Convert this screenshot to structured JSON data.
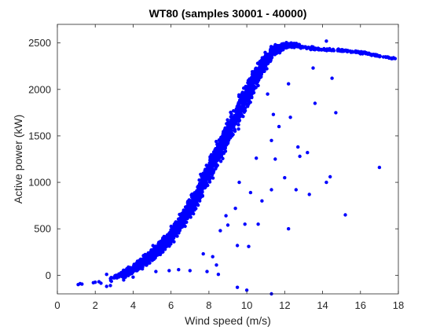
{
  "chart_data": {
    "type": "scatter",
    "title": "WT80 (samples 30001 - 40000)",
    "xlabel": "Wind speed (m/s)",
    "ylabel": "Active power (kW)",
    "xlim": [
      0,
      18
    ],
    "ylim": [
      -200,
      2700
    ],
    "xticks": [
      0,
      2,
      4,
      6,
      8,
      10,
      12,
      14,
      16,
      18
    ],
    "yticks": [
      0,
      500,
      1000,
      1500,
      2000,
      2500
    ],
    "grid": false,
    "box": true,
    "series": [
      {
        "color": "#0000ff",
        "marker": "dot",
        "trend_band": [
          {
            "x": 2.7,
            "y": -40,
            "spread": 40
          },
          {
            "x": 3.2,
            "y": -10,
            "spread": 40
          },
          {
            "x": 4.0,
            "y": 60,
            "spread": 60
          },
          {
            "x": 5.0,
            "y": 220,
            "spread": 80
          },
          {
            "x": 6.0,
            "y": 420,
            "spread": 100
          },
          {
            "x": 7.0,
            "y": 720,
            "spread": 130
          },
          {
            "x": 7.5,
            "y": 900,
            "spread": 140
          },
          {
            "x": 8.0,
            "y": 1130,
            "spread": 150
          },
          {
            "x": 9.0,
            "y": 1520,
            "spread": 160
          },
          {
            "x": 10.0,
            "y": 1930,
            "spread": 160
          },
          {
            "x": 10.5,
            "y": 2130,
            "spread": 150
          },
          {
            "x": 11.0,
            "y": 2320,
            "spread": 110
          },
          {
            "x": 11.5,
            "y": 2430,
            "spread": 60
          },
          {
            "x": 12.0,
            "y": 2470,
            "spread": 40
          },
          {
            "x": 12.5,
            "y": 2480,
            "spread": 30
          },
          {
            "x": 13.0,
            "y": 2450,
            "spread": 25
          },
          {
            "x": 14.0,
            "y": 2430,
            "spread": 20
          },
          {
            "x": 15.0,
            "y": 2420,
            "spread": 15
          },
          {
            "x": 16.0,
            "y": 2400,
            "spread": 15
          },
          {
            "x": 17.0,
            "y": 2360,
            "spread": 15
          },
          {
            "x": 17.8,
            "y": 2330,
            "spread": 10
          }
        ],
        "outliers": [
          {
            "x": 1.1,
            "y": -100
          },
          {
            "x": 1.2,
            "y": -90
          },
          {
            "x": 1.3,
            "y": -95
          },
          {
            "x": 1.9,
            "y": -80
          },
          {
            "x": 2.0,
            "y": -75
          },
          {
            "x": 2.2,
            "y": -70
          },
          {
            "x": 2.3,
            "y": -85
          },
          {
            "x": 2.6,
            "y": -120
          },
          {
            "x": 2.8,
            "y": -110
          },
          {
            "x": 2.6,
            "y": 10
          },
          {
            "x": 3.5,
            "y": -50
          },
          {
            "x": 4.0,
            "y": -20
          },
          {
            "x": 5.2,
            "y": 40
          },
          {
            "x": 5.9,
            "y": 50
          },
          {
            "x": 6.4,
            "y": 60
          },
          {
            "x": 7.0,
            "y": 50
          },
          {
            "x": 7.7,
            "y": 230
          },
          {
            "x": 7.9,
            "y": 40
          },
          {
            "x": 8.2,
            "y": 200
          },
          {
            "x": 8.4,
            "y": 110
          },
          {
            "x": 8.5,
            "y": 10
          },
          {
            "x": 8.9,
            "y": 640
          },
          {
            "x": 9.0,
            "y": 540
          },
          {
            "x": 8.6,
            "y": 480
          },
          {
            "x": 9.5,
            "y": 320
          },
          {
            "x": 9.9,
            "y": 550
          },
          {
            "x": 10.1,
            "y": 310
          },
          {
            "x": 9.4,
            "y": 720
          },
          {
            "x": 9.6,
            "y": 1000
          },
          {
            "x": 10.2,
            "y": 890
          },
          {
            "x": 10.8,
            "y": 800
          },
          {
            "x": 11.3,
            "y": 920
          },
          {
            "x": 11.5,
            "y": 1250
          },
          {
            "x": 11.7,
            "y": 1600
          },
          {
            "x": 12.0,
            "y": 1050
          },
          {
            "x": 12.2,
            "y": 500
          },
          {
            "x": 12.7,
            "y": 1380
          },
          {
            "x": 12.8,
            "y": 1280
          },
          {
            "x": 12.6,
            "y": 920
          },
          {
            "x": 13.2,
            "y": 1320
          },
          {
            "x": 13.3,
            "y": 870
          },
          {
            "x": 13.6,
            "y": 1850
          },
          {
            "x": 14.2,
            "y": 1000
          },
          {
            "x": 14.4,
            "y": 1060
          },
          {
            "x": 14.5,
            "y": 2120
          },
          {
            "x": 14.7,
            "y": 1750
          },
          {
            "x": 15.2,
            "y": 650
          },
          {
            "x": 17.0,
            "y": 1160
          },
          {
            "x": 11.1,
            "y": 1950
          },
          {
            "x": 11.4,
            "y": 1730
          },
          {
            "x": 10.6,
            "y": 550
          },
          {
            "x": 11.3,
            "y": 1450
          },
          {
            "x": 12.3,
            "y": 1700
          },
          {
            "x": 10.5,
            "y": 1260
          },
          {
            "x": 9.5,
            "y": -130
          },
          {
            "x": 10.0,
            "y": -160
          },
          {
            "x": 11.3,
            "y": -200
          },
          {
            "x": 12.2,
            "y": 2060
          },
          {
            "x": 13.5,
            "y": 2230
          },
          {
            "x": 14.2,
            "y": 2520
          }
        ]
      }
    ]
  }
}
